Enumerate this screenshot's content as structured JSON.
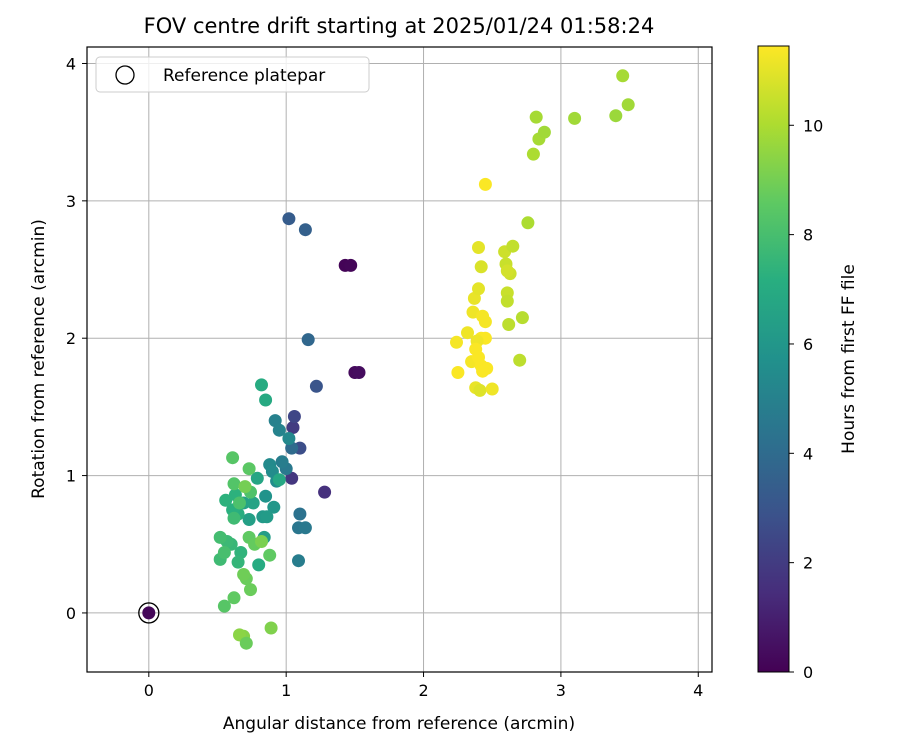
{
  "chart_data": {
    "type": "scatter",
    "title": "FOV centre drift starting at 2025/01/24 01:58:24",
    "xlabel": "Angular distance from reference (arcmin)",
    "ylabel": "Rotation from reference (arcmin)",
    "xlim": [
      -0.45,
      4.1
    ],
    "ylim": [
      -0.43,
      4.12
    ],
    "x_ticks": [
      0,
      1,
      2,
      3,
      4
    ],
    "x_tick_labels": [
      "0",
      "1",
      "2",
      "3",
      "4"
    ],
    "y_ticks": [
      0,
      1,
      2,
      3,
      4
    ],
    "y_tick_labels": [
      "0",
      "1",
      "2",
      "3",
      "4"
    ],
    "grid": true,
    "legend": {
      "placement": "top-left",
      "entries": [
        "Reference platepar"
      ]
    },
    "reference_point": {
      "x": 0,
      "y": 0,
      "label": "Reference platepar"
    },
    "colorbar": {
      "label": "Hours from first FF file",
      "min": 0,
      "max": 11.45,
      "ticks": [
        0,
        2,
        4,
        6,
        8,
        10
      ],
      "tick_labels": [
        "0",
        "2",
        "4",
        "6",
        "8",
        "10"
      ],
      "colormap": "viridis"
    },
    "points": [
      {
        "x": 1.43,
        "y": 2.53,
        "h": 0.1
      },
      {
        "x": 1.47,
        "y": 2.53,
        "h": 0.15
      },
      {
        "x": 1.5,
        "y": 1.75,
        "h": 0.3
      },
      {
        "x": 1.53,
        "y": 1.75,
        "h": 0.35
      },
      {
        "x": 1.28,
        "y": 0.88,
        "h": 1.6
      },
      {
        "x": 1.04,
        "y": 0.98,
        "h": 1.8
      },
      {
        "x": 1.05,
        "y": 1.35,
        "h": 2.0
      },
      {
        "x": 1.06,
        "y": 1.43,
        "h": 2.4
      },
      {
        "x": 1.1,
        "y": 1.2,
        "h": 2.7
      },
      {
        "x": 1.22,
        "y": 1.65,
        "h": 3.0
      },
      {
        "x": 1.02,
        "y": 2.87,
        "h": 3.3
      },
      {
        "x": 1.14,
        "y": 2.79,
        "h": 3.5
      },
      {
        "x": 1.16,
        "y": 1.99,
        "h": 3.8
      },
      {
        "x": 1.04,
        "y": 1.2,
        "h": 4.0
      },
      {
        "x": 1.1,
        "y": 0.72,
        "h": 4.3
      },
      {
        "x": 1.09,
        "y": 0.62,
        "h": 4.5
      },
      {
        "x": 1.14,
        "y": 0.62,
        "h": 4.6
      },
      {
        "x": 1.09,
        "y": 0.38,
        "h": 4.8
      },
      {
        "x": 1.0,
        "y": 1.05,
        "h": 4.6
      },
      {
        "x": 0.97,
        "y": 1.1,
        "h": 4.8
      },
      {
        "x": 0.92,
        "y": 1.4,
        "h": 5.0
      },
      {
        "x": 0.95,
        "y": 1.33,
        "h": 5.1
      },
      {
        "x": 1.02,
        "y": 1.27,
        "h": 5.3
      },
      {
        "x": 0.88,
        "y": 1.08,
        "h": 5.4
      },
      {
        "x": 0.9,
        "y": 1.03,
        "h": 5.5
      },
      {
        "x": 0.93,
        "y": 0.96,
        "h": 5.6
      },
      {
        "x": 0.85,
        "y": 0.85,
        "h": 5.8
      },
      {
        "x": 0.91,
        "y": 0.77,
        "h": 6.0
      },
      {
        "x": 0.83,
        "y": 0.7,
        "h": 6.1
      },
      {
        "x": 0.86,
        "y": 0.7,
        "h": 6.2
      },
      {
        "x": 0.84,
        "y": 0.55,
        "h": 6.3
      },
      {
        "x": 0.73,
        "y": 0.68,
        "h": 6.4
      },
      {
        "x": 0.69,
        "y": 0.8,
        "h": 6.5
      },
      {
        "x": 0.76,
        "y": 0.8,
        "h": 6.6
      },
      {
        "x": 0.79,
        "y": 0.98,
        "h": 6.7
      },
      {
        "x": 0.95,
        "y": 0.97,
        "h": 6.8
      },
      {
        "x": 0.85,
        "y": 1.55,
        "h": 6.9
      },
      {
        "x": 0.82,
        "y": 1.66,
        "h": 7.0
      },
      {
        "x": 0.65,
        "y": 0.72,
        "h": 7.1
      },
      {
        "x": 0.61,
        "y": 0.75,
        "h": 7.2
      },
      {
        "x": 0.56,
        "y": 0.82,
        "h": 7.3
      },
      {
        "x": 0.63,
        "y": 0.86,
        "h": 7.3
      },
      {
        "x": 0.67,
        "y": 0.44,
        "h": 7.4
      },
      {
        "x": 0.65,
        "y": 0.37,
        "h": 7.5
      },
      {
        "x": 0.6,
        "y": 0.5,
        "h": 7.6
      },
      {
        "x": 0.57,
        "y": 0.52,
        "h": 7.7
      },
      {
        "x": 0.52,
        "y": 0.39,
        "h": 7.8
      },
      {
        "x": 0.52,
        "y": 0.55,
        "h": 7.9
      },
      {
        "x": 0.55,
        "y": 0.44,
        "h": 8.0
      },
      {
        "x": 0.62,
        "y": 0.69,
        "h": 7.8
      },
      {
        "x": 0.66,
        "y": 0.8,
        "h": 8.1
      },
      {
        "x": 0.74,
        "y": 0.88,
        "h": 8.2
      },
      {
        "x": 0.62,
        "y": 0.94,
        "h": 8.3
      },
      {
        "x": 0.61,
        "y": 1.13,
        "h": 8.4
      },
      {
        "x": 0.73,
        "y": 1.05,
        "h": 8.5
      },
      {
        "x": 0.8,
        "y": 0.35,
        "h": 7.0
      },
      {
        "x": 0.73,
        "y": 0.55,
        "h": 8.6
      },
      {
        "x": 0.77,
        "y": 0.5,
        "h": 8.7
      },
      {
        "x": 0.71,
        "y": 0.25,
        "h": 8.8
      },
      {
        "x": 0.69,
        "y": 0.28,
        "h": 8.9
      },
      {
        "x": 0.74,
        "y": 0.17,
        "h": 8.8
      },
      {
        "x": 0.62,
        "y": 0.11,
        "h": 8.6
      },
      {
        "x": 0.55,
        "y": 0.05,
        "h": 8.4
      },
      {
        "x": 0.88,
        "y": 0.42,
        "h": 8.6
      },
      {
        "x": 0.82,
        "y": 0.52,
        "h": 9.1
      },
      {
        "x": 0.7,
        "y": 0.92,
        "h": 9.0
      },
      {
        "x": 0.69,
        "y": -0.17,
        "h": 9.3
      },
      {
        "x": 0.66,
        "y": -0.16,
        "h": 9.4
      },
      {
        "x": 0.89,
        "y": -0.11,
        "h": 9.2
      },
      {
        "x": 0.71,
        "y": -0.22,
        "h": 8.8
      },
      {
        "x": 2.42,
        "y": 2.52,
        "h": 10.8
      },
      {
        "x": 2.4,
        "y": 2.66,
        "h": 11.0
      },
      {
        "x": 2.37,
        "y": 2.29,
        "h": 11.1
      },
      {
        "x": 2.36,
        "y": 2.19,
        "h": 11.2
      },
      {
        "x": 2.4,
        "y": 2.36,
        "h": 11.0
      },
      {
        "x": 2.43,
        "y": 2.16,
        "h": 11.3
      },
      {
        "x": 2.45,
        "y": 2.12,
        "h": 11.3
      },
      {
        "x": 2.32,
        "y": 2.04,
        "h": 11.2
      },
      {
        "x": 2.42,
        "y": 2.0,
        "h": 11.4
      },
      {
        "x": 2.45,
        "y": 2.0,
        "h": 11.4
      },
      {
        "x": 2.24,
        "y": 1.97,
        "h": 11.3
      },
      {
        "x": 2.39,
        "y": 1.98,
        "h": 11.2
      },
      {
        "x": 2.38,
        "y": 1.92,
        "h": 11.4
      },
      {
        "x": 2.35,
        "y": 1.83,
        "h": 11.3
      },
      {
        "x": 2.4,
        "y": 1.86,
        "h": 11.4
      },
      {
        "x": 2.42,
        "y": 1.8,
        "h": 11.4
      },
      {
        "x": 2.46,
        "y": 1.78,
        "h": 11.4
      },
      {
        "x": 2.43,
        "y": 1.76,
        "h": 11.4
      },
      {
        "x": 2.25,
        "y": 1.75,
        "h": 11.4
      },
      {
        "x": 2.38,
        "y": 1.64,
        "h": 11.1
      },
      {
        "x": 2.41,
        "y": 1.62,
        "h": 10.9
      },
      {
        "x": 2.5,
        "y": 1.63,
        "h": 11.2
      },
      {
        "x": 2.45,
        "y": 3.12,
        "h": 11.4
      },
      {
        "x": 2.59,
        "y": 2.63,
        "h": 10.6
      },
      {
        "x": 2.65,
        "y": 2.67,
        "h": 10.4
      },
      {
        "x": 2.6,
        "y": 2.54,
        "h": 10.5
      },
      {
        "x": 2.63,
        "y": 2.47,
        "h": 10.6
      },
      {
        "x": 2.61,
        "y": 2.49,
        "h": 10.7
      },
      {
        "x": 2.61,
        "y": 2.33,
        "h": 10.5
      },
      {
        "x": 2.61,
        "y": 2.27,
        "h": 10.4
      },
      {
        "x": 2.62,
        "y": 2.1,
        "h": 10.3
      },
      {
        "x": 2.72,
        "y": 2.15,
        "h": 10.2
      },
      {
        "x": 2.7,
        "y": 1.84,
        "h": 10.3
      },
      {
        "x": 2.76,
        "y": 2.84,
        "h": 10.0
      },
      {
        "x": 2.8,
        "y": 3.34,
        "h": 10.0
      },
      {
        "x": 2.84,
        "y": 3.45,
        "h": 9.9
      },
      {
        "x": 2.88,
        "y": 3.5,
        "h": 9.8
      },
      {
        "x": 2.82,
        "y": 3.61,
        "h": 9.9
      },
      {
        "x": 3.1,
        "y": 3.6,
        "h": 9.8
      },
      {
        "x": 3.4,
        "y": 3.62,
        "h": 9.7
      },
      {
        "x": 3.49,
        "y": 3.7,
        "h": 9.8
      },
      {
        "x": 3.45,
        "y": 3.91,
        "h": 9.9
      },
      {
        "x": 0.0,
        "y": 0.0,
        "h": 0.2
      }
    ]
  }
}
